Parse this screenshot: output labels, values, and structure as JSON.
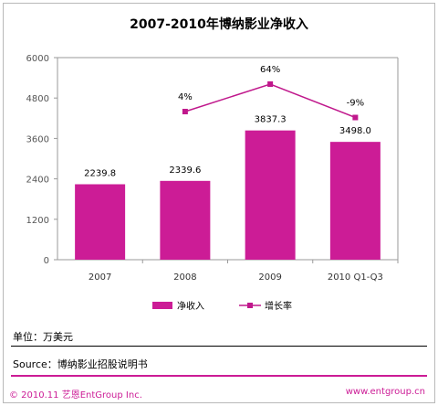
{
  "colors": {
    "bar": "#cc1c96",
    "line": "#c0188c",
    "accent": "#cc1c96"
  },
  "chart_data": {
    "type": "bar",
    "title": "2007-2010年博纳影业净收入",
    "categories": [
      "2007",
      "2008",
      "2009",
      "2010 Q1-Q3"
    ],
    "series": [
      {
        "name": "净收入",
        "type": "bar",
        "values": [
          2239.8,
          2339.6,
          3837.3,
          3498.0
        ],
        "labels": [
          "2239.8",
          "2339.6",
          "3837.3",
          "3498.0"
        ]
      },
      {
        "name": "增长率",
        "type": "line",
        "values": [
          null,
          4,
          64,
          -9
        ],
        "labels": [
          "",
          "4%",
          "64%",
          "-9%"
        ]
      }
    ],
    "ylim": [
      0,
      6000
    ],
    "yticks": [
      0,
      1200,
      2400,
      3600,
      4800,
      6000
    ],
    "ytick_labels": [
      "0",
      "1200",
      "2400",
      "3600",
      "4800",
      "6000"
    ],
    "legend_position": "bottom",
    "grid": false
  },
  "unit_text": "单位：万美元",
  "source_text": "Source：博纳影业招股说明书",
  "footer": {
    "copyright": "© 2010.11  艺恩EntGroup Inc.",
    "website": "www.entgroup.cn"
  }
}
